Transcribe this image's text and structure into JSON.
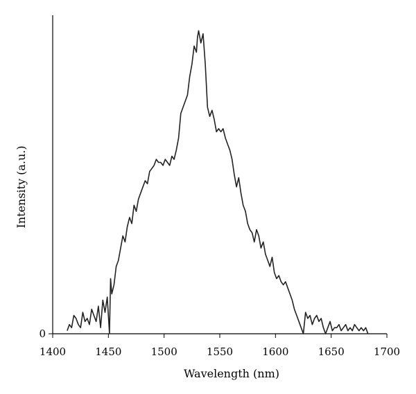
{
  "chart_data": {
    "type": "line",
    "title": "",
    "xlabel": "Wavelength (nm)",
    "ylabel": "Intensity (a.u.)",
    "xlim": [
      1400,
      1700
    ],
    "ylim": [
      0,
      1
    ],
    "x_ticks": [
      "1400",
      "1450",
      "1500",
      "1550",
      "1600",
      "1650",
      "1700"
    ],
    "y_ticks": [
      "0"
    ],
    "grid": false,
    "legend": "none",
    "series": [
      {
        "color": "#222222",
        "x": [
          1413,
          1415,
          1417,
          1419,
          1421,
          1423,
          1425,
          1427,
          1429,
          1431,
          1433,
          1435,
          1437,
          1439,
          1441,
          1443,
          1445,
          1447,
          1449,
          1451,
          1452,
          1453,
          1455,
          1457,
          1459,
          1461,
          1463,
          1465,
          1467,
          1469,
          1471,
          1473,
          1475,
          1477,
          1479,
          1481,
          1483,
          1485,
          1487,
          1489,
          1491,
          1493,
          1495,
          1497,
          1499,
          1501,
          1503,
          1505,
          1507,
          1509,
          1511,
          1513,
          1515,
          1517,
          1519,
          1521,
          1523,
          1525,
          1527,
          1529,
          1530,
          1531,
          1533,
          1535,
          1537,
          1539,
          1541,
          1543,
          1545,
          1547,
          1549,
          1551,
          1553,
          1555,
          1557,
          1559,
          1561,
          1563,
          1565,
          1567,
          1569,
          1571,
          1573,
          1575,
          1577,
          1579,
          1581,
          1583,
          1585,
          1587,
          1589,
          1591,
          1593,
          1595,
          1597,
          1599,
          1601,
          1603,
          1605,
          1607,
          1609,
          1611,
          1613,
          1615,
          1617,
          1619,
          1621,
          1623,
          1625,
          1627,
          1629,
          1631,
          1633,
          1635,
          1637,
          1639,
          1641,
          1643,
          1645,
          1647,
          1649,
          1651,
          1653,
          1655,
          1657,
          1659,
          1661,
          1663,
          1665,
          1667,
          1669,
          1671,
          1673,
          1675,
          1677,
          1679,
          1681,
          1683
        ],
        "y": [
          0.01,
          0.03,
          0.02,
          0.06,
          0.05,
          0.03,
          0.02,
          0.07,
          0.04,
          0.05,
          0.03,
          0.08,
          0.06,
          0.04,
          0.09,
          0.02,
          0.11,
          0.07,
          0.12,
          0.0,
          0.18,
          0.13,
          0.16,
          0.22,
          0.24,
          0.28,
          0.32,
          0.3,
          0.35,
          0.38,
          0.36,
          0.42,
          0.4,
          0.44,
          0.46,
          0.48,
          0.5,
          0.49,
          0.53,
          0.54,
          0.55,
          0.57,
          0.56,
          0.56,
          0.55,
          0.57,
          0.56,
          0.55,
          0.58,
          0.57,
          0.6,
          0.64,
          0.72,
          0.74,
          0.76,
          0.78,
          0.84,
          0.88,
          0.94,
          0.92,
          0.97,
          0.99,
          0.95,
          0.98,
          0.88,
          0.74,
          0.71,
          0.73,
          0.7,
          0.66,
          0.67,
          0.66,
          0.67,
          0.64,
          0.62,
          0.6,
          0.57,
          0.52,
          0.48,
          0.51,
          0.46,
          0.42,
          0.4,
          0.36,
          0.34,
          0.33,
          0.3,
          0.34,
          0.32,
          0.28,
          0.3,
          0.26,
          0.24,
          0.22,
          0.25,
          0.2,
          0.18,
          0.19,
          0.17,
          0.16,
          0.17,
          0.15,
          0.13,
          0.11,
          0.08,
          0.06,
          0.04,
          0.02,
          0.0,
          0.07,
          0.05,
          0.06,
          0.03,
          0.05,
          0.06,
          0.04,
          0.05,
          0.02,
          0.0,
          0.02,
          0.04,
          0.01,
          0.02,
          0.02,
          0.03,
          0.01,
          0.02,
          0.03,
          0.01,
          0.02,
          0.01,
          0.03,
          0.02,
          0.01,
          0.02,
          0.01,
          0.02,
          0.0
        ]
      }
    ]
  }
}
